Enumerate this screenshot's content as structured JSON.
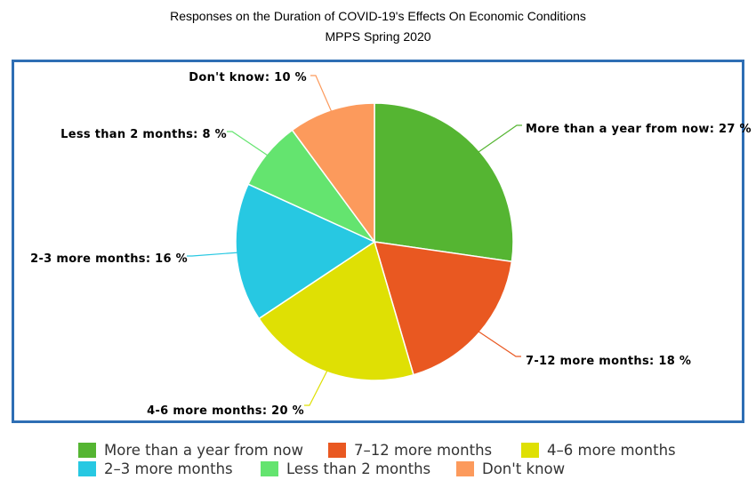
{
  "title": "Responses on the Duration of COVID-19's Effects On Economic Conditions",
  "subtitle": "MPPS Spring 2020",
  "chart_data": {
    "type": "pie",
    "title": "Responses on the Duration of COVID-19's Effects On Economic Conditions",
    "subtitle": "MPPS Spring 2020",
    "slices": [
      {
        "label": "More than a year from now",
        "value": 27,
        "data_label": "More than a year from now: 27 %",
        "color": "#55b532"
      },
      {
        "label": "7-12 more months",
        "value": 18,
        "data_label": "7-12 more months: 18 %",
        "color": "#e95821"
      },
      {
        "label": "4-6 more months",
        "value": 20,
        "data_label": "4-6 more months: 20 %",
        "color": "#dfe004"
      },
      {
        "label": "2-3 more months",
        "value": 16,
        "data_label": "2-3 more months: 16 %",
        "color": "#27c8e2"
      },
      {
        "label": "Less than 2 months",
        "value": 8,
        "data_label": "Less than 2 months: 8 %",
        "color": "#64e46f"
      },
      {
        "label": "Don't know",
        "value": 10,
        "data_label": "Don't know: 10 %",
        "color": "#fc9a5c"
      }
    ],
    "legend": {
      "placement": "bottom",
      "entries": [
        "More than a year from now",
        "7–12 more months",
        "4–6 more months",
        "2–3 more months",
        "Less than 2 months",
        "Don't know"
      ]
    },
    "unit": "%"
  }
}
